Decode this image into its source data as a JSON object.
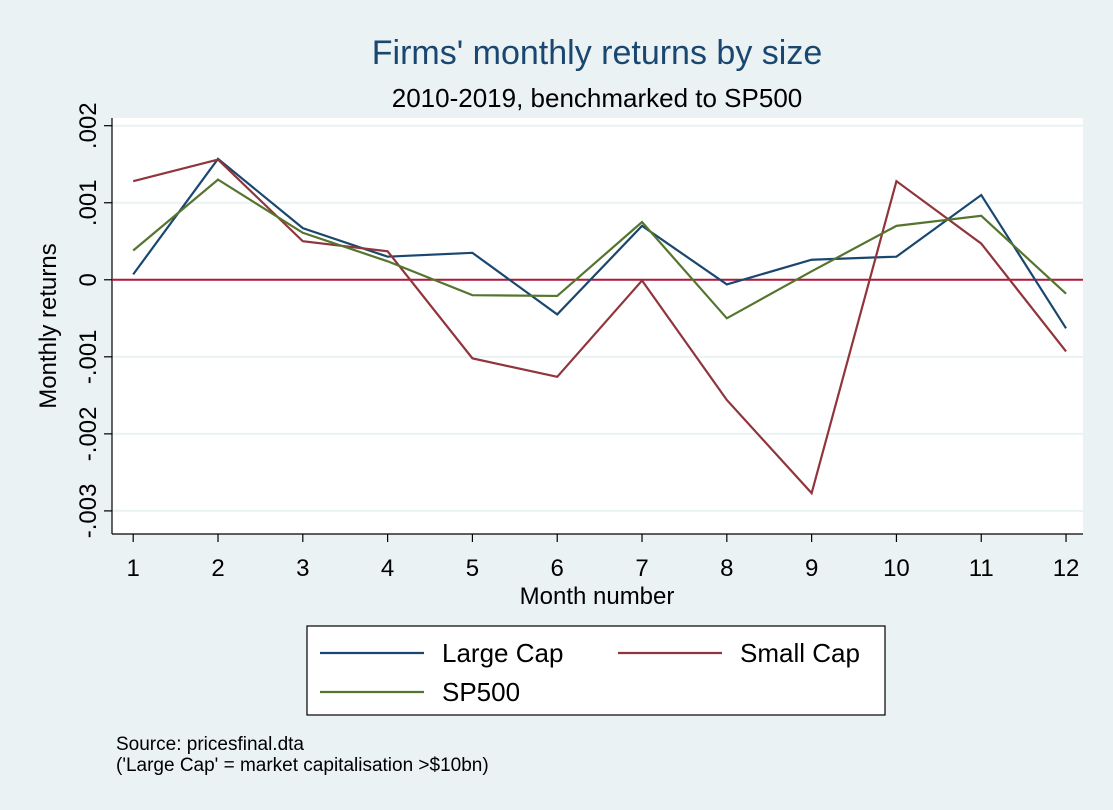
{
  "chart_data": {
    "type": "line",
    "title": "Firms' monthly returns by size",
    "subtitle": "2010-2019, benchmarked to SP500",
    "xlabel": "Month number",
    "ylabel": "Monthly returns",
    "x": [
      1,
      2,
      3,
      4,
      5,
      6,
      7,
      8,
      9,
      10,
      11,
      12
    ],
    "x_ticks": [
      "1",
      "2",
      "3",
      "4",
      "5",
      "6",
      "7",
      "8",
      "9",
      "10",
      "11",
      "12"
    ],
    "xlim": [
      0.75,
      12.2
    ],
    "ylim": [
      -0.0033,
      0.0021
    ],
    "y_ticks": [
      {
        "value": 0.002,
        "label": ".002"
      },
      {
        "value": 0.001,
        "label": ".001"
      },
      {
        "value": 0,
        "label": "0"
      },
      {
        "value": -0.001,
        "label": "-.001"
      },
      {
        "value": -0.002,
        "label": "-.002"
      },
      {
        "value": -0.003,
        "label": "-.003"
      }
    ],
    "grid": true,
    "reference_line": {
      "y": 0,
      "color": "#b2183b"
    },
    "legend_position": "bottom",
    "series": [
      {
        "name": "Large Cap",
        "color": "#1a476f",
        "values": [
          7e-05,
          0.00157,
          0.00067,
          0.0003,
          0.00035,
          -0.00045,
          0.0007,
          -6e-05,
          0.00026,
          0.0003,
          0.0011,
          -0.00063
        ]
      },
      {
        "name": "Small Cap",
        "color": "#90353b",
        "values": [
          0.00128,
          0.00156,
          0.0005,
          0.00037,
          -0.00102,
          -0.00126,
          -1e-05,
          -0.00156,
          -0.00277,
          0.00128,
          0.00047,
          -0.00093
        ]
      },
      {
        "name": "SP500",
        "color": "#55752f",
        "values": [
          0.00038,
          0.0013,
          0.00061,
          0.00024,
          -0.0002,
          -0.00021,
          0.00075,
          -0.0005,
          0.00011,
          0.0007,
          0.00083,
          -0.00018
        ]
      }
    ]
  },
  "notes": {
    "source": "Source: pricesfinal.dta",
    "definition": "('Large Cap' = market capitalisation >$10bn)"
  }
}
